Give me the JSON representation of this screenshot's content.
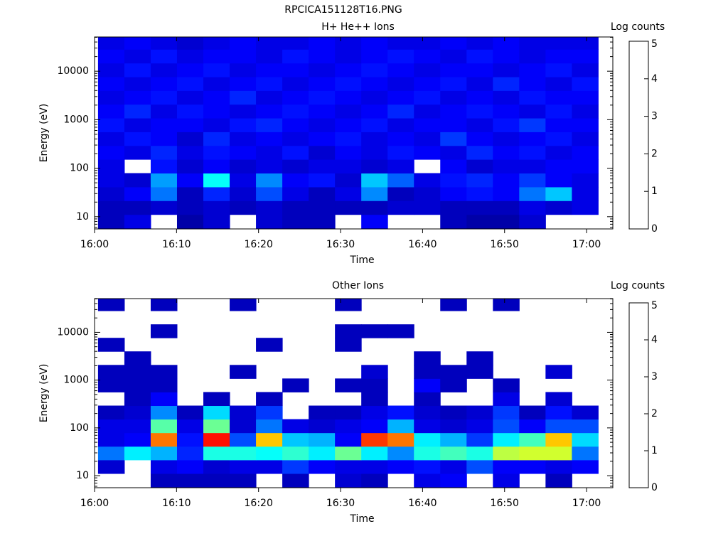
{
  "title": "RPCICA151128T16.PNG",
  "chart_data": [
    {
      "type": "heatmap",
      "title": "H+ He++ Ions",
      "xlabel": "Time",
      "ylabel": "Energy (eV)",
      "colorbar_label": "Log counts",
      "colormap": "jet",
      "log_y": true,
      "xlim": [
        0,
        63.2
      ],
      "xticks": [
        {
          "value": 0,
          "label": "16:00"
        },
        {
          "value": 10,
          "label": "16:10"
        },
        {
          "value": 20,
          "label": "16:20"
        },
        {
          "value": 30,
          "label": "16:30"
        },
        {
          "value": 40,
          "label": "16:40"
        },
        {
          "value": 50,
          "label": "16:50"
        },
        {
          "value": 60,
          "label": "17:00"
        }
      ],
      "ylim": [
        5.6,
        50800
      ],
      "yticks": [
        10,
        100,
        1000,
        10000
      ],
      "zlim": [
        0,
        5
      ],
      "zticks": [
        0,
        1,
        2,
        3,
        4,
        5
      ],
      "x": [
        2.03,
        5.24,
        8.45,
        11.66,
        14.87,
        18.08,
        21.29,
        24.5,
        27.71,
        30.92,
        34.13,
        37.34,
        40.55,
        43.76,
        46.97,
        50.18,
        53.39,
        56.6,
        59.81
      ],
      "y": [
        8,
        15.4,
        29.7,
        57,
        110,
        211,
        406,
        780,
        1500,
        2880,
        5540,
        10600,
        20400,
        39300
      ],
      "z": [
        [
          0.3,
          0.5,
          null,
          0.2,
          0.4,
          null,
          0.4,
          0.3,
          0.3,
          null,
          0.6,
          null,
          null,
          0.3,
          0.2,
          0.2,
          0.4,
          null,
          null
        ],
        [
          0.3,
          0.3,
          0.4,
          0.3,
          0.4,
          0.3,
          0.4,
          0.3,
          0.3,
          0.3,
          0.3,
          0.4,
          0.4,
          0.3,
          0.3,
          0.3,
          0.5,
          0.4,
          0.5
        ],
        [
          0.4,
          0.6,
          1.2,
          0.3,
          0.8,
          0.4,
          1.0,
          0.5,
          0.3,
          0.5,
          1.3,
          0.3,
          0.4,
          0.6,
          0.7,
          0.6,
          1.2,
          1.6,
          0.5
        ],
        [
          0.5,
          0.4,
          1.4,
          0.6,
          1.9,
          0.5,
          1.3,
          0.6,
          0.7,
          0.4,
          1.6,
          1.1,
          0.5,
          0.7,
          0.8,
          0.6,
          0.9,
          0.6,
          0.5
        ],
        [
          0.5,
          null,
          0.7,
          0.4,
          0.6,
          0.4,
          0.5,
          0.4,
          0.5,
          0.5,
          0.4,
          0.5,
          null,
          0.6,
          0.4,
          0.5,
          0.5,
          0.6,
          0.6
        ],
        [
          0.6,
          0.5,
          0.8,
          0.5,
          0.7,
          0.6,
          0.5,
          0.7,
          0.4,
          0.6,
          0.5,
          0.7,
          0.6,
          0.5,
          0.8,
          0.6,
          0.7,
          0.5,
          0.6
        ],
        [
          0.5,
          0.7,
          0.6,
          0.4,
          0.8,
          0.5,
          0.6,
          0.5,
          0.6,
          0.7,
          0.5,
          0.6,
          0.5,
          0.9,
          0.6,
          0.5,
          0.6,
          0.7,
          0.5
        ],
        [
          0.7,
          0.5,
          0.6,
          0.6,
          0.5,
          0.7,
          0.8,
          0.6,
          0.5,
          0.6,
          0.7,
          0.5,
          0.6,
          0.6,
          0.5,
          0.7,
          0.9,
          0.6,
          0.6
        ],
        [
          0.6,
          0.8,
          0.5,
          0.7,
          0.6,
          0.5,
          0.6,
          0.7,
          0.6,
          0.5,
          0.6,
          0.8,
          0.5,
          0.6,
          0.7,
          0.6,
          0.5,
          0.7,
          0.5
        ],
        [
          0.5,
          0.6,
          0.7,
          0.5,
          0.6,
          0.8,
          0.5,
          0.6,
          0.7,
          0.6,
          0.5,
          0.6,
          0.7,
          0.5,
          0.6,
          0.5,
          0.7,
          0.6,
          0.6
        ],
        [
          0.6,
          0.5,
          0.6,
          0.7,
          0.5,
          0.6,
          0.7,
          0.5,
          0.6,
          0.7,
          0.6,
          0.5,
          0.6,
          0.7,
          0.5,
          0.8,
          0.6,
          0.5,
          0.7
        ],
        [
          0.5,
          0.7,
          0.5,
          0.6,
          0.7,
          0.5,
          0.6,
          0.6,
          0.5,
          0.6,
          0.7,
          0.6,
          0.5,
          0.6,
          0.6,
          0.5,
          0.6,
          0.7,
          0.5
        ],
        [
          0.6,
          0.5,
          0.7,
          0.5,
          0.6,
          0.6,
          0.5,
          0.7,
          0.6,
          0.5,
          0.6,
          0.7,
          0.6,
          0.5,
          0.7,
          0.6,
          0.5,
          0.6,
          0.6
        ],
        [
          0.5,
          0.6,
          0.5,
          0.4,
          0.5,
          0.6,
          0.5,
          0.5,
          0.6,
          0.5,
          0.6,
          0.5,
          0.5,
          0.6,
          0.5,
          0.6,
          0.5,
          0.5,
          0.5
        ]
      ]
    },
    {
      "type": "heatmap",
      "title": "Other Ions",
      "xlabel": "Time",
      "ylabel": "Energy (eV)",
      "colorbar_label": "Log counts",
      "colormap": "jet",
      "log_y": true,
      "xlim": [
        0,
        63.2
      ],
      "xticks": [
        {
          "value": 0,
          "label": "16:00"
        },
        {
          "value": 10,
          "label": "16:10"
        },
        {
          "value": 20,
          "label": "16:20"
        },
        {
          "value": 30,
          "label": "16:30"
        },
        {
          "value": 40,
          "label": "16:40"
        },
        {
          "value": 50,
          "label": "16:50"
        },
        {
          "value": 60,
          "label": "17:00"
        }
      ],
      "ylim": [
        5.6,
        50800
      ],
      "yticks": [
        10,
        100,
        1000,
        10000
      ],
      "zlim": [
        0,
        5
      ],
      "zticks": [
        0,
        1,
        2,
        3,
        4,
        5
      ],
      "x": [
        2.03,
        5.24,
        8.45,
        11.66,
        14.87,
        18.08,
        21.29,
        24.5,
        27.71,
        30.92,
        34.13,
        37.34,
        40.55,
        43.76,
        46.97,
        50.18,
        53.39,
        56.6,
        59.81
      ],
      "y": [
        8,
        15.4,
        29.7,
        57,
        110,
        211,
        406,
        780,
        1500,
        2880,
        5540,
        10600,
        20400,
        39300
      ],
      "z": [
        [
          null,
          null,
          0.3,
          0.3,
          0.3,
          0.3,
          null,
          0.3,
          null,
          0.4,
          0.3,
          null,
          0.5,
          0.6,
          null,
          0.5,
          null,
          0.3,
          null
        ],
        [
          0.4,
          null,
          0.5,
          0.6,
          0.4,
          0.5,
          0.5,
          0.9,
          0.6,
          0.5,
          0.5,
          0.6,
          0.7,
          0.5,
          1.0,
          0.6,
          0.6,
          0.5,
          0.6
        ],
        [
          1.2,
          1.8,
          1.5,
          0.8,
          2.0,
          2.0,
          1.9,
          2.1,
          1.8,
          2.4,
          1.8,
          1.3,
          2.0,
          2.2,
          2.0,
          2.8,
          2.9,
          2.9,
          1.2
        ],
        [
          0.5,
          0.6,
          3.8,
          0.7,
          4.3,
          1.0,
          3.4,
          1.6,
          1.5,
          0.6,
          4.1,
          3.8,
          1.8,
          1.5,
          0.9,
          1.8,
          2.2,
          3.4,
          1.7
        ],
        [
          0.5,
          0.5,
          2.3,
          0.5,
          2.4,
          0.4,
          1.2,
          0.5,
          0.4,
          0.5,
          0.6,
          1.5,
          0.5,
          0.4,
          0.5,
          1.0,
          0.6,
          1.0,
          1.0
        ],
        [
          0.3,
          0.4,
          1.3,
          0.3,
          1.7,
          0.4,
          0.9,
          null,
          0.3,
          0.3,
          0.5,
          0.7,
          0.4,
          0.3,
          0.4,
          0.9,
          0.3,
          0.7,
          0.4
        ],
        [
          null,
          0.3,
          0.6,
          null,
          0.3,
          null,
          0.3,
          null,
          null,
          null,
          0.3,
          null,
          0.3,
          null,
          null,
          0.5,
          null,
          0.4,
          null
        ],
        [
          0.3,
          0.3,
          0.3,
          null,
          null,
          null,
          null,
          0.3,
          null,
          0.3,
          0.3,
          null,
          0.6,
          0.3,
          null,
          0.3,
          null,
          null,
          null
        ],
        [
          0.3,
          0.3,
          0.3,
          null,
          null,
          0.3,
          null,
          null,
          null,
          null,
          0.4,
          null,
          0.3,
          0.3,
          0.3,
          null,
          null,
          0.4,
          null
        ],
        [
          null,
          0.3,
          null,
          null,
          null,
          null,
          null,
          null,
          null,
          null,
          null,
          null,
          0.3,
          null,
          0.3,
          null,
          null,
          null,
          null
        ],
        [
          0.3,
          null,
          null,
          null,
          null,
          null,
          0.3,
          null,
          null,
          0.3,
          null,
          null,
          null,
          null,
          null,
          null,
          null,
          null,
          null
        ],
        [
          null,
          null,
          0.3,
          null,
          null,
          null,
          null,
          null,
          null,
          0.3,
          0.3,
          0.3,
          null,
          null,
          null,
          null,
          null,
          null,
          null
        ],
        [
          null,
          null,
          null,
          null,
          null,
          null,
          null,
          null,
          null,
          null,
          null,
          null,
          null,
          null,
          null,
          null,
          null,
          null,
          null
        ],
        [
          0.3,
          null,
          0.3,
          null,
          null,
          0.3,
          null,
          null,
          null,
          0.3,
          null,
          null,
          null,
          0.3,
          null,
          0.3,
          null,
          null,
          null
        ]
      ]
    }
  ]
}
